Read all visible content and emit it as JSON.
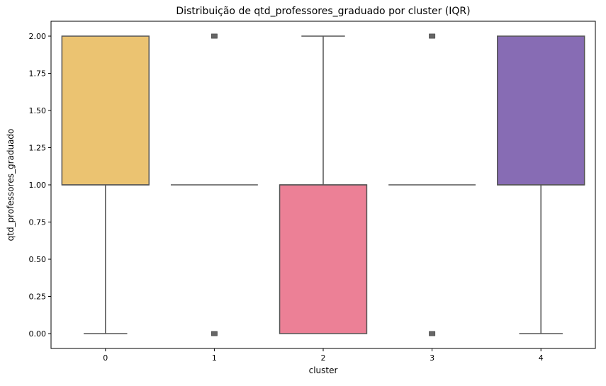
{
  "chart_data": {
    "type": "box",
    "title": "Distribuição de qtd_professores_graduado por cluster (IQR)",
    "xlabel": "cluster",
    "ylabel": "qtd_professores_graduado",
    "categories": [
      "0",
      "1",
      "2",
      "3",
      "4"
    ],
    "ylim": [
      -0.1,
      2.1
    ],
    "yticks": [
      "0.00",
      "0.25",
      "0.50",
      "0.75",
      "1.00",
      "1.25",
      "1.50",
      "1.75",
      "2.00"
    ],
    "grid": false,
    "boxes": [
      {
        "category": "0",
        "whisker_low": 0,
        "q1": 1,
        "median": 1,
        "q3": 2,
        "whisker_high": 2,
        "outliers": [],
        "color": "#EBC371"
      },
      {
        "category": "1",
        "whisker_low": 1,
        "q1": 1,
        "median": 1,
        "q3": 1,
        "whisker_high": 1,
        "outliers": [
          0,
          2
        ],
        "color": "#EBC371"
      },
      {
        "category": "2",
        "whisker_low": 0,
        "q1": 0,
        "median": 1,
        "q3": 1,
        "whisker_high": 2,
        "outliers": [],
        "color": "#EC8096"
      },
      {
        "category": "3",
        "whisker_low": 1,
        "q1": 1,
        "median": 1,
        "q3": 1,
        "whisker_high": 1,
        "outliers": [
          0,
          2
        ],
        "color": "#EC8096"
      },
      {
        "category": "4",
        "whisker_low": 0,
        "q1": 1,
        "median": 1,
        "q3": 2,
        "whisker_high": 2,
        "outliers": [],
        "color": "#876CB4"
      }
    ],
    "line_color": "#555555"
  }
}
